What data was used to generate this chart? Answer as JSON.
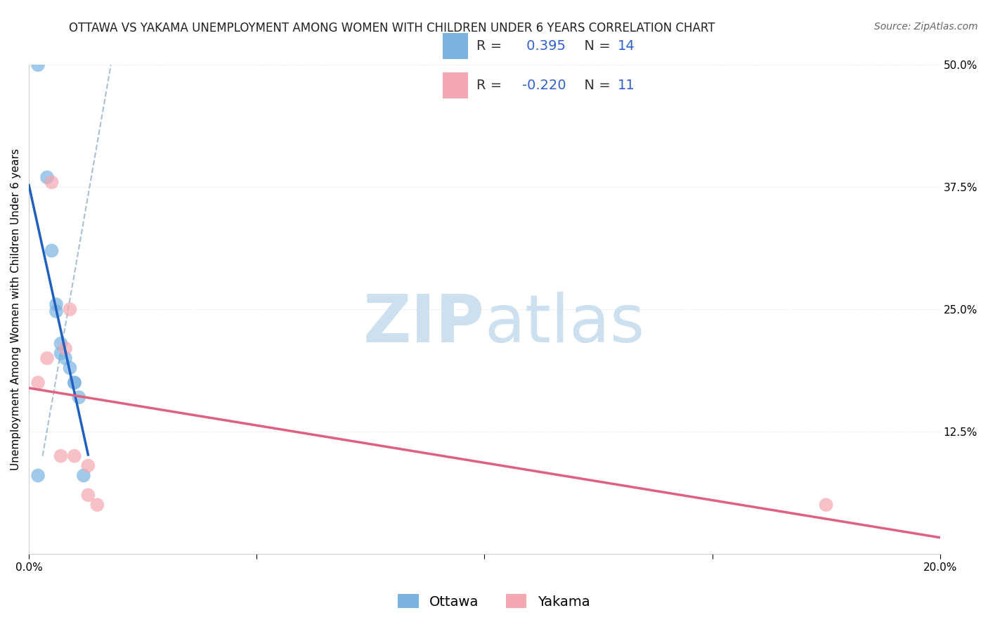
{
  "title": "OTTAWA VS YAKAMA UNEMPLOYMENT AMONG WOMEN WITH CHILDREN UNDER 6 YEARS CORRELATION CHART",
  "source": "Source: ZipAtlas.com",
  "ylabel": "Unemployment Among Women with Children Under 6 years",
  "xlim": [
    0.0,
    0.2
  ],
  "ylim": [
    0.0,
    0.5
  ],
  "xticks": [
    0.0,
    0.05,
    0.1,
    0.15,
    0.2
  ],
  "xticklabels": [
    "0.0%",
    "",
    "",
    "",
    "20.0%"
  ],
  "yticks": [
    0.0,
    0.125,
    0.25,
    0.375,
    0.5
  ],
  "yticklabels": [
    "",
    "12.5%",
    "25.0%",
    "37.5%",
    "50.0%"
  ],
  "ottawa_R": 0.395,
  "ottawa_N": 14,
  "yakama_R": -0.22,
  "yakama_N": 11,
  "ottawa_color": "#7ab3e0",
  "yakama_color": "#f4a7b0",
  "ottawa_line_color": "#2060c0",
  "yakama_line_color": "#e06080",
  "dash_color": "#a0b8d0",
  "watermark_color": "#cce0f0",
  "background_color": "#ffffff",
  "grid_color": "#e0e0e0",
  "ottawa_x": [
    0.002,
    0.004,
    0.005,
    0.006,
    0.006,
    0.007,
    0.007,
    0.008,
    0.009,
    0.01,
    0.01,
    0.011,
    0.012,
    0.002
  ],
  "ottawa_y": [
    0.5,
    0.385,
    0.31,
    0.255,
    0.248,
    0.215,
    0.205,
    0.2,
    0.19,
    0.175,
    0.175,
    0.16,
    0.08,
    0.08
  ],
  "yakama_x": [
    0.002,
    0.004,
    0.005,
    0.007,
    0.008,
    0.009,
    0.01,
    0.013,
    0.013,
    0.015,
    0.175
  ],
  "yakama_y": [
    0.175,
    0.2,
    0.38,
    0.1,
    0.21,
    0.25,
    0.1,
    0.06,
    0.09,
    0.05,
    0.05
  ],
  "title_fontsize": 12,
  "axis_label_fontsize": 11,
  "tick_fontsize": 11,
  "legend_fontsize": 14,
  "dot_size": 200
}
